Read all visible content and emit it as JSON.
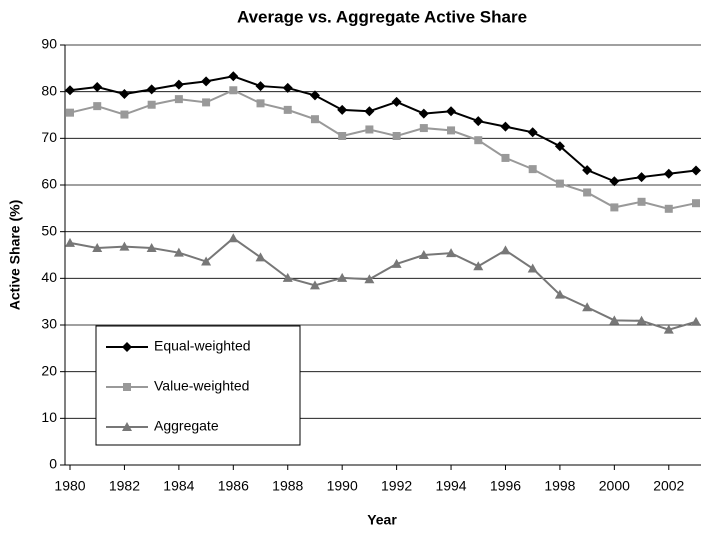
{
  "chart_data": {
    "type": "line",
    "title": "Average vs. Aggregate Active Share",
    "xlabel": "Year",
    "ylabel": "Active Share (%)",
    "x": [
      1980,
      1981,
      1982,
      1983,
      1984,
      1985,
      1986,
      1987,
      1988,
      1989,
      1990,
      1991,
      1992,
      1993,
      1994,
      1995,
      1996,
      1997,
      1998,
      1999,
      2000,
      2001,
      2002,
      2003
    ],
    "series": [
      {
        "name": "Equal-weighted",
        "color": "#000000",
        "marker": "diamond",
        "values": [
          80.3,
          81.0,
          79.5,
          80.5,
          81.5,
          82.2,
          83.3,
          81.2,
          80.8,
          79.2,
          76.1,
          75.8,
          77.8,
          75.3,
          75.8,
          73.7,
          72.5,
          71.3,
          68.3,
          63.2,
          60.8,
          61.7,
          62.4,
          63.1
        ]
      },
      {
        "name": "Value-weighted",
        "color": "#999999",
        "marker": "square",
        "values": [
          75.5,
          76.9,
          75.1,
          77.2,
          78.4,
          77.7,
          80.3,
          77.5,
          76.1,
          74.1,
          70.5,
          71.9,
          70.5,
          72.2,
          71.7,
          69.6,
          65.8,
          63.4,
          60.3,
          58.4,
          55.2,
          56.4,
          54.9,
          56.1
        ]
      },
      {
        "name": "Aggregate",
        "color": "#777777",
        "marker": "triangle",
        "values": [
          47.6,
          46.5,
          46.8,
          46.5,
          45.5,
          43.6,
          48.6,
          44.5,
          40.1,
          38.5,
          40.1,
          39.8,
          43.1,
          45.0,
          45.4,
          42.6,
          46.0,
          42.1,
          36.5,
          33.8,
          31.0,
          30.9,
          29.0,
          30.7
        ]
      }
    ],
    "xlim": [
      1980,
      2003
    ],
    "xticks": [
      1980,
      1982,
      1984,
      1986,
      1988,
      1990,
      1992,
      1994,
      1996,
      1998,
      2000,
      2002
    ],
    "ylim": [
      0,
      90
    ],
    "yticks": [
      0,
      10,
      20,
      30,
      40,
      50,
      60,
      70,
      80,
      90
    ],
    "grid": true,
    "legend": "lower-left"
  }
}
